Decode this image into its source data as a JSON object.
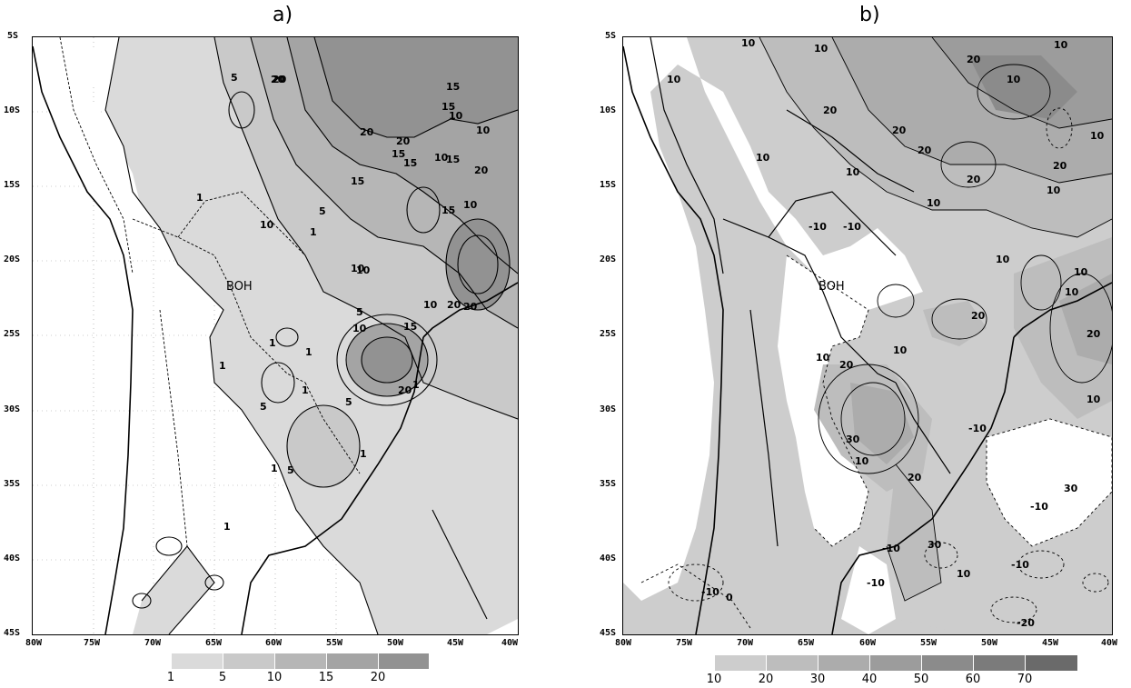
{
  "panel_a": {
    "title": "a)",
    "lat_labels": [
      "5S",
      "10S",
      "15S",
      "20S",
      "25S",
      "30S",
      "35S",
      "40S",
      "45S"
    ],
    "lon_labels": [
      "80W",
      "75W",
      "70W",
      "65W",
      "60W",
      "55W",
      "50W",
      "45W",
      "40W"
    ],
    "legend_labels": [
      "1",
      "5",
      "10",
      "15",
      "20"
    ],
    "legend_colors": [
      "#dadada",
      "#c9c9c9",
      "#b6b6b6",
      "#a4a4a4",
      "#929292"
    ],
    "site_label": "BOH",
    "contour_labels": [
      "1",
      "5",
      "10",
      "15",
      "20",
      "10",
      "15",
      "20",
      "15",
      "10",
      "5",
      "1",
      "10",
      "15",
      "20",
      "20",
      "15",
      "10",
      "20",
      "15",
      "5",
      "10",
      "15",
      "20",
      "10",
      "5",
      "1",
      "20",
      "1",
      "5",
      "1",
      "1",
      "1",
      "1",
      "5",
      "1",
      "1",
      "10",
      "10",
      "20",
      "15"
    ]
  },
  "panel_b": {
    "title": "b)",
    "lat_labels": [
      "5S",
      "10S",
      "15S",
      "20S",
      "25S",
      "30S",
      "35S",
      "40S",
      "45S"
    ],
    "lon_labels": [
      "80W",
      "75W",
      "70W",
      "65W",
      "60W",
      "55W",
      "50W",
      "45W",
      "40W"
    ],
    "legend_labels": [
      "10",
      "20",
      "30",
      "40",
      "50",
      "60",
      "70"
    ],
    "legend_colors": [
      "#cdcdcd",
      "#bdbdbd",
      "#acacac",
      "#9c9c9c",
      "#8b8b8b",
      "#7b7b7b",
      "#6a6a6a"
    ],
    "site_label": "BOH",
    "contour_labels": [
      "10",
      "10",
      "10",
      "10",
      "20",
      "10",
      "20",
      "20",
      "10",
      "10",
      "20",
      "10",
      "20",
      "20",
      "10",
      "10",
      "-10",
      "-10",
      "10",
      "10",
      "10",
      "20",
      "20",
      "30",
      "10",
      "20",
      "10",
      "30",
      "-10",
      "10",
      "-10",
      "10",
      "30",
      "-10",
      "10",
      "-10",
      "-10",
      "-20",
      "-10",
      "0",
      "20"
    ]
  }
}
